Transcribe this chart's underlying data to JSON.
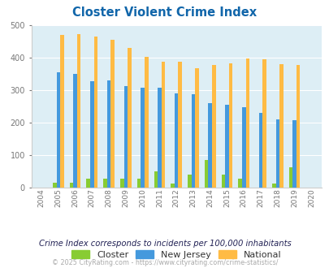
{
  "title": "Closter Violent Crime Index",
  "years": [
    2004,
    2005,
    2006,
    2007,
    2008,
    2009,
    2010,
    2011,
    2012,
    2013,
    2014,
    2015,
    2016,
    2017,
    2018,
    2019,
    2020
  ],
  "closter": [
    0,
    15,
    15,
    27,
    27,
    27,
    27,
    50,
    13,
    40,
    85,
    40,
    27,
    0,
    13,
    62,
    0
  ],
  "new_jersey": [
    0,
    355,
    350,
    328,
    330,
    312,
    309,
    309,
    291,
    288,
    261,
    255,
    247,
    231,
    210,
    207,
    0
  ],
  "national": [
    0,
    470,
    474,
    466,
    455,
    432,
    404,
    387,
    387,
    368,
    377,
    384,
    397,
    395,
    380,
    379,
    0
  ],
  "closter_color": "#88cc33",
  "nj_color": "#4499dd",
  "national_color": "#ffbb44",
  "plot_bg": "#ddeef5",
  "ylim": [
    0,
    500
  ],
  "yticks": [
    0,
    100,
    200,
    300,
    400,
    500
  ],
  "subtitle": "Crime Index corresponds to incidents per 100,000 inhabitants",
  "footer": "© 2025 CityRating.com - https://www.cityrating.com/crime-statistics/",
  "bar_width": 0.22
}
